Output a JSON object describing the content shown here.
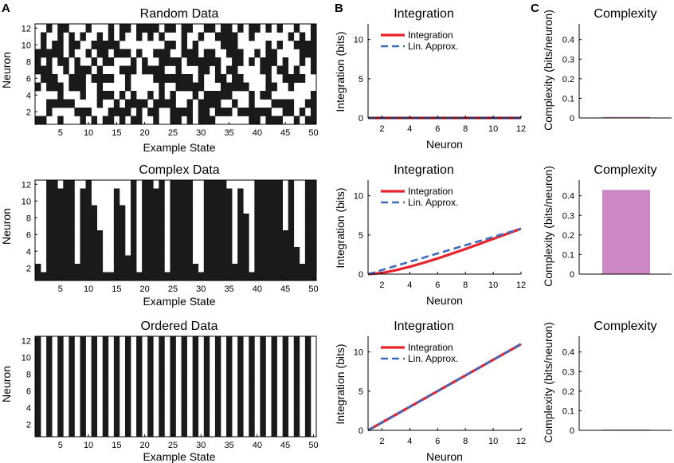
{
  "panel_letters": [
    "A",
    "B",
    "C"
  ],
  "chart_data": [
    {
      "type": "heatmap",
      "panel": "A",
      "title": "Random Data",
      "xlabel": "Example State",
      "ylabel": "Neuron",
      "xticks": [
        5,
        10,
        15,
        20,
        25,
        30,
        35,
        40,
        45,
        50
      ],
      "yticks": [
        2,
        4,
        6,
        8,
        10,
        12
      ],
      "xlim": [
        0.5,
        50.5
      ],
      "ylim": [
        0.5,
        12.5
      ],
      "colors": {
        "on": "#1a1a1a",
        "off": "#ffffff"
      },
      "pattern": "random",
      "seed": 7,
      "density": 0.5
    },
    {
      "type": "heatmap",
      "panel": "A",
      "title": "Complex Data",
      "xlabel": "Example State",
      "ylabel": "Neuron",
      "xticks": [
        5,
        10,
        15,
        20,
        25,
        30,
        35,
        40,
        45,
        50
      ],
      "yticks": [
        2,
        4,
        6,
        8,
        10,
        12
      ],
      "xlim": [
        0.5,
        50.5
      ],
      "ylim": [
        0.5,
        12.5
      ],
      "colors": {
        "on": "#1a1a1a",
        "off": "#ffffff"
      },
      "pattern": "complex",
      "column_levels": [
        2,
        1,
        12,
        12,
        11,
        12,
        12,
        2,
        11,
        12,
        9,
        6,
        1,
        1,
        11,
        9,
        3,
        12,
        1,
        12,
        12,
        11,
        12,
        1,
        12,
        12,
        12,
        12,
        2,
        1,
        12,
        12,
        12,
        12,
        11,
        2,
        11,
        8,
        1,
        12,
        12,
        12,
        12,
        12,
        6,
        12,
        4,
        2,
        12,
        12
      ]
    },
    {
      "type": "heatmap",
      "panel": "A",
      "title": "Ordered Data",
      "xlabel": "Example State",
      "ylabel": "Neuron",
      "xticks": [
        5,
        10,
        15,
        20,
        25,
        30,
        35,
        40,
        45,
        50
      ],
      "yticks": [
        2,
        4,
        6,
        8,
        10,
        12
      ],
      "xlim": [
        0.5,
        50.5
      ],
      "ylim": [
        0.5,
        12.5
      ],
      "colors": {
        "on": "#1a1a1a",
        "off": "#ffffff"
      },
      "pattern": "alternating"
    },
    {
      "type": "line",
      "panel": "B",
      "title": "Integration",
      "xlabel": "Neuron",
      "ylabel": "Integration (bits)",
      "xlim": [
        1,
        12
      ],
      "ylim": [
        0,
        12
      ],
      "xticks": [
        2,
        4,
        6,
        8,
        10,
        12
      ],
      "yticks": [
        0,
        5,
        10
      ],
      "legend": "top-right",
      "series": [
        {
          "name": "Integration",
          "color": "#e8232b",
          "dash": "solid",
          "x": [
            1,
            2,
            3,
            4,
            5,
            6,
            7,
            8,
            9,
            10,
            11,
            12
          ],
          "y": [
            0,
            0,
            0,
            0,
            0,
            0,
            0,
            0,
            0,
            0,
            0,
            0
          ]
        },
        {
          "name": "Lin. Approx.",
          "color": "#3f6bbd",
          "dash": "dashed",
          "x": [
            1,
            2,
            3,
            4,
            5,
            6,
            7,
            8,
            9,
            10,
            11,
            12
          ],
          "y": [
            0,
            0,
            0,
            0,
            0,
            0,
            0,
            0,
            0,
            0,
            0,
            0
          ]
        }
      ]
    },
    {
      "type": "line",
      "panel": "B",
      "title": "Integration",
      "xlabel": "Neuron",
      "ylabel": "Integration (bits)",
      "xlim": [
        1,
        12
      ],
      "ylim": [
        0,
        12
      ],
      "xticks": [
        2,
        4,
        6,
        8,
        10,
        12
      ],
      "yticks": [
        0,
        5,
        10
      ],
      "legend": "top-right",
      "series": [
        {
          "name": "Integration",
          "color": "#e8232b",
          "dash": "solid",
          "x": [
            1,
            2,
            3,
            4,
            5,
            6,
            7,
            8,
            9,
            10,
            11,
            12
          ],
          "y": [
            0,
            0.15,
            0.5,
            0.95,
            1.45,
            2.0,
            2.6,
            3.2,
            3.85,
            4.5,
            5.15,
            5.8
          ]
        },
        {
          "name": "Lin. Approx.",
          "color": "#3f6bbd",
          "dash": "dashed",
          "x": [
            1,
            12
          ],
          "y": [
            0,
            5.8
          ]
        }
      ]
    },
    {
      "type": "line",
      "panel": "B",
      "title": "Integration",
      "xlabel": "Neuron",
      "ylabel": "Integration (bits)",
      "xlim": [
        1,
        12
      ],
      "ylim": [
        0,
        12
      ],
      "xticks": [
        2,
        4,
        6,
        8,
        10,
        12
      ],
      "yticks": [
        0,
        5,
        10
      ],
      "legend": "top-right",
      "series": [
        {
          "name": "Integration",
          "color": "#e8232b",
          "dash": "solid",
          "x": [
            1,
            12
          ],
          "y": [
            0,
            11
          ]
        },
        {
          "name": "Lin. Approx.",
          "color": "#3f6bbd",
          "dash": "dashed",
          "x": [
            1,
            12
          ],
          "y": [
            0,
            11
          ]
        }
      ]
    },
    {
      "type": "bar",
      "panel": "C",
      "title": "Complexity",
      "ylabel": "Complexity (bits/neuron)",
      "ylim": [
        0,
        0.48
      ],
      "yticks": [
        0,
        0.1,
        0.2,
        0.3,
        0.4
      ],
      "ytick_labels": [
        "0",
        "0.1",
        "0.2",
        "0.3",
        "0.4"
      ],
      "values": [
        0.005
      ],
      "color": "#cc88c4"
    },
    {
      "type": "bar",
      "panel": "C",
      "title": "Complexity",
      "ylabel": "Complexity (bits/neuron)",
      "ylim": [
        0,
        0.48
      ],
      "yticks": [
        0,
        0.1,
        0.2,
        0.3,
        0.4
      ],
      "ytick_labels": [
        "0",
        "0.1",
        "0.2",
        "0.3",
        "0.4"
      ],
      "values": [
        0.43
      ],
      "color": "#cc88c4"
    },
    {
      "type": "bar",
      "panel": "C",
      "title": "Complexity",
      "ylabel": "Complexity (bits/neuron)",
      "ylim": [
        0,
        0.48
      ],
      "yticks": [
        0,
        0.1,
        0.2,
        0.3,
        0.4
      ],
      "ytick_labels": [
        "0",
        "0.1",
        "0.2",
        "0.3",
        "0.4"
      ],
      "values": [
        0.004
      ],
      "color": "#cc88c4"
    }
  ]
}
